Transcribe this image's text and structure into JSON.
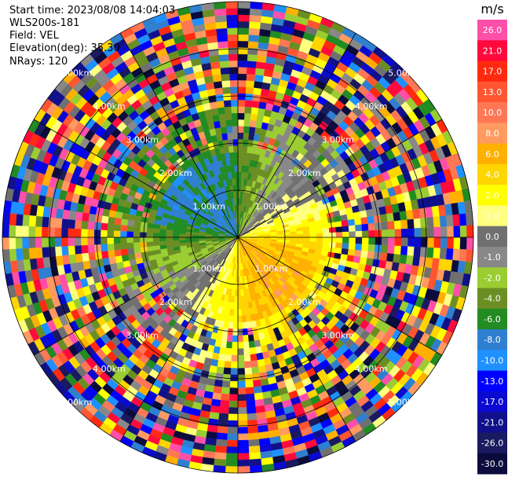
{
  "header": {
    "start_time": "Start time: 2023/08/08 14:04:03",
    "instrument": "WLS200s-181",
    "field": "Field: VEL",
    "elevation": "Elevation(deg): 35.30",
    "nrays": "NRays: 120"
  },
  "chart_data": {
    "type": "heatmap",
    "projection": "polar-ppi",
    "field": "VEL",
    "units": "m/s",
    "n_rays": 120,
    "range_rings_km": [
      1.0,
      2.0,
      3.0,
      4.0,
      5.0
    ],
    "ring_labels": [
      "1.00km",
      "2.00km",
      "3.00km",
      "4.00km",
      "5.00km"
    ],
    "max_range_km": 5.0,
    "colorbar": {
      "ticks": [
        "26.0",
        "21.0",
        "17.0",
        "13.0",
        "10.0",
        "8.0",
        "6.0",
        "4.0",
        "2.0",
        "1.0",
        "0.0",
        "-1.0",
        "-2.0",
        "-4.0",
        "-6.0",
        "-8.0",
        "-10.0",
        "-13.0",
        "-17.0",
        "-21.0",
        "-26.0",
        "-30.0"
      ],
      "colors": [
        "#ff4fa8",
        "#ff0a3c",
        "#ff2a10",
        "#ff5530",
        "#ff7755",
        "#ff9a60",
        "#ffb000",
        "#ffd500",
        "#ffff00",
        "#ffff80",
        "#707070",
        "#888888",
        "#9acd32",
        "#6b8e23",
        "#228b22",
        "#2f7fd0",
        "#1e90ff",
        "#0000ff",
        "#0a0ad0",
        "#10108a",
        "#1a1a60",
        "#0b0b3c"
      ]
    },
    "velocity_pattern": "approaching (negative, green/blue) to the north-west, receding (positive, yellow/orange) to the south-east; noisy beyond ~3 km"
  }
}
